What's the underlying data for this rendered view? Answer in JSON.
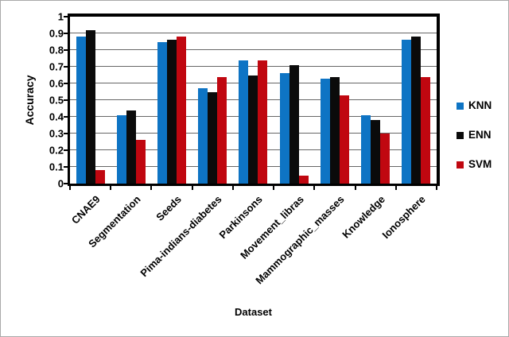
{
  "window": {
    "background": "#ffffff",
    "border_color": "#a9a9a9"
  },
  "chart_data": {
    "type": "bar",
    "title": "",
    "xlabel": "Dataset",
    "ylabel": "Accuracy",
    "ylim": [
      0,
      1
    ],
    "ytick_labels": [
      "0",
      "0.1",
      "0.2",
      "0.3",
      "0.4",
      "0.5",
      "0.6",
      "0.7",
      "0.8",
      "0.9",
      "1"
    ],
    "grid": true,
    "legend_position": "right-middle",
    "categories": [
      "CNAE9",
      "Segmentation",
      "Seeds",
      "Pima-indians-diabetes",
      "Parkinsons",
      "Movement_libras",
      "Mammographic_masses",
      "Knowledge",
      "Ionosphere"
    ],
    "series": [
      {
        "name": "KNN",
        "color": "#0E74C4",
        "values": [
          0.88,
          0.41,
          0.85,
          0.57,
          0.74,
          0.66,
          0.63,
          0.41,
          0.86
        ]
      },
      {
        "name": "ENN",
        "color": "#0B0B0B",
        "values": [
          0.92,
          0.44,
          0.86,
          0.55,
          0.65,
          0.71,
          0.64,
          0.38,
          0.88
        ]
      },
      {
        "name": "SVM",
        "color": "#C00710",
        "values": [
          0.08,
          0.26,
          0.88,
          0.64,
          0.74,
          0.05,
          0.53,
          0.3,
          0.64
        ]
      }
    ],
    "colors": {
      "gridline": "#666666",
      "axis": "#000000",
      "text": "#000000"
    }
  }
}
